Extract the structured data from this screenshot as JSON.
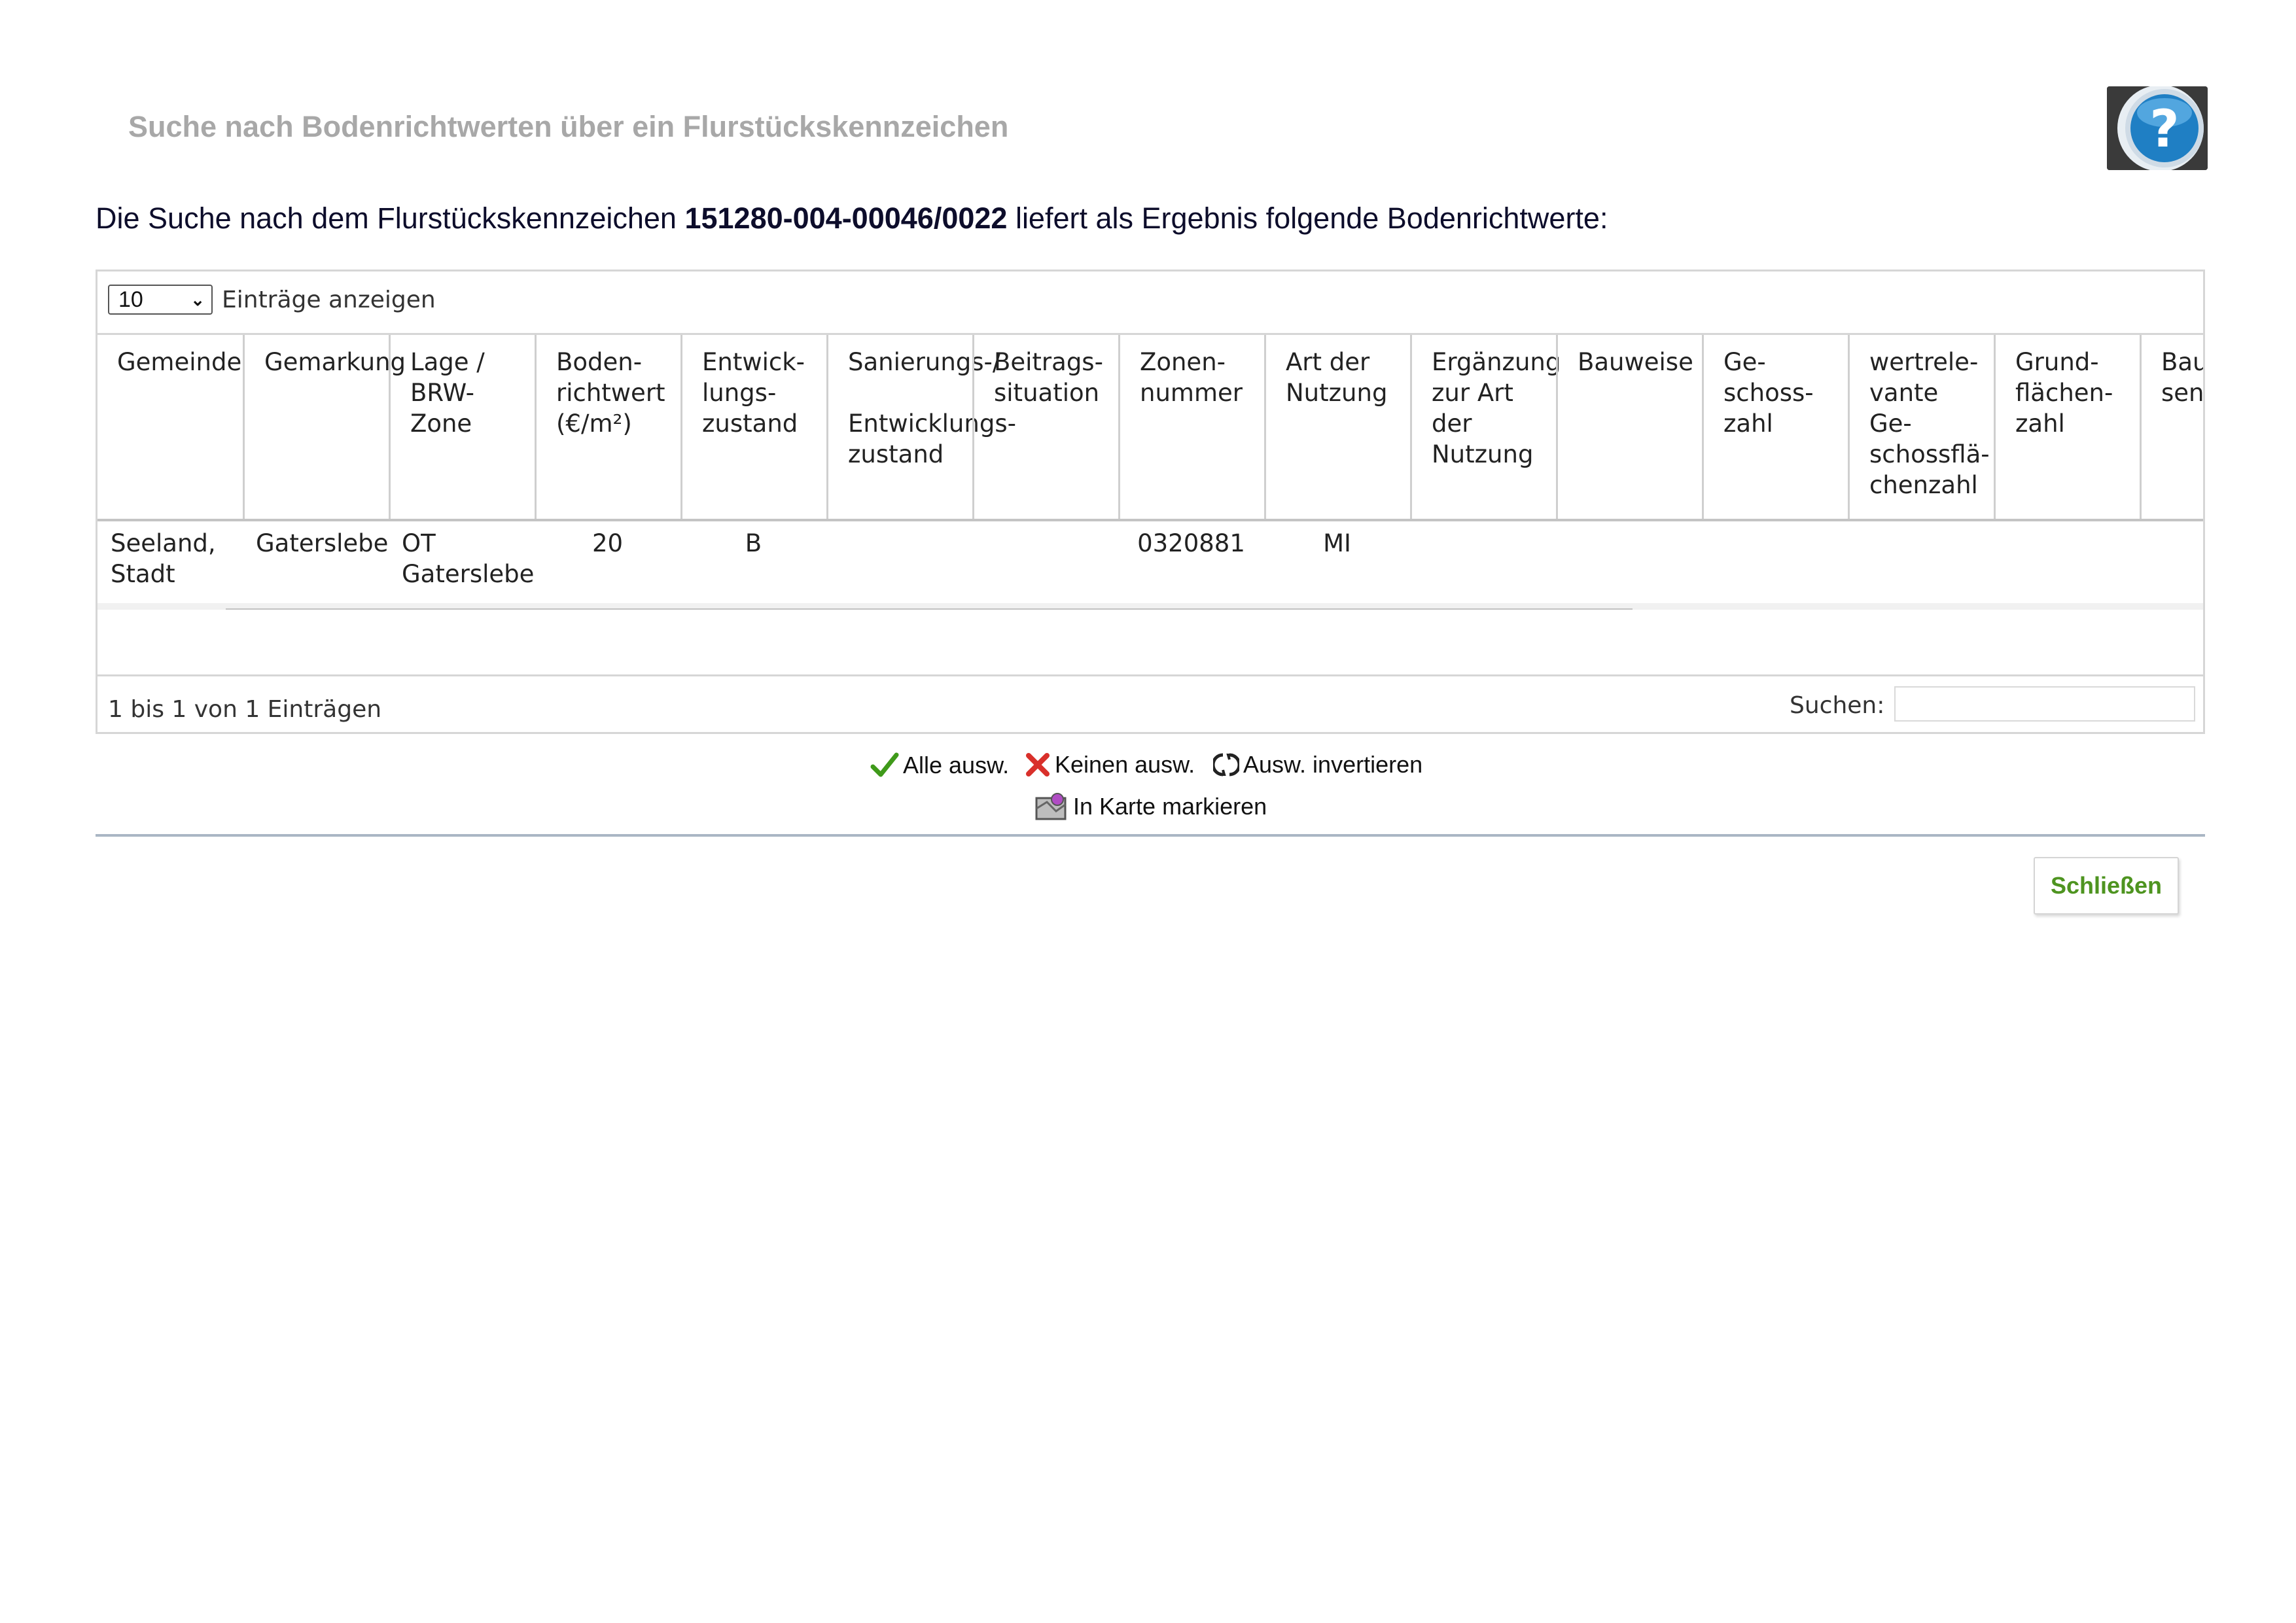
{
  "dialog": {
    "title": "Suche nach Bodenrichtwerten über ein Flurstückskennzeichen",
    "intro_before": "Die Suche nach dem Flurstückskennzeichen ",
    "intro_key": "151280-004-00046/0022",
    "intro_after": " liefert als Ergebnis folgende Bodenrichtwerte:",
    "close_label": "Schließen"
  },
  "table": {
    "page_length": "10",
    "page_length_label": "Einträge anzeigen",
    "columns": [
      "Gemeinde",
      "Gemarkung",
      "Lage /\nBRW-\nZone",
      "Boden-\nrichtwert\n(€/m²)",
      "Entwick-\nlungs-\nzustand",
      "Sanierungs-/\n\nEntwicklungs-\nzustand",
      "Beitrags-\nsituation",
      "Zonen-\nnummer",
      "Art der\nNutzung",
      "Ergänzung\n zur Art\nder\nNutzung",
      "Bauweise",
      "Ge-\nschoss-\nzahl",
      "wertrele-\nvante\nGe-\nschossflä-\nchenzahl",
      "Grund-\nflächen-\nzahl",
      "Bau-\nsenz"
    ],
    "rows": [
      [
        "Seeland,\nStadt",
        "Gaterslebe",
        "OT\nGaterslebe",
        "20",
        "B",
        "",
        "",
        "0320881",
        "MI",
        "",
        "",
        "",
        "",
        "",
        ""
      ]
    ],
    "info": "1 bis 1 von 1 Einträgen",
    "search_label": "Suchen:",
    "search_value": ""
  },
  "actions": {
    "select_all": "Alle ausw.",
    "select_none": "Keinen ausw.",
    "invert": "Ausw. invertieren",
    "mark_map": "In Karte markieren"
  },
  "colors": {
    "title_gray": "#a8a8a8",
    "close_green": "#4e9420",
    "check_green": "#3f9a1a",
    "cross_red": "#d9302b",
    "divider": "#aab6c4"
  }
}
